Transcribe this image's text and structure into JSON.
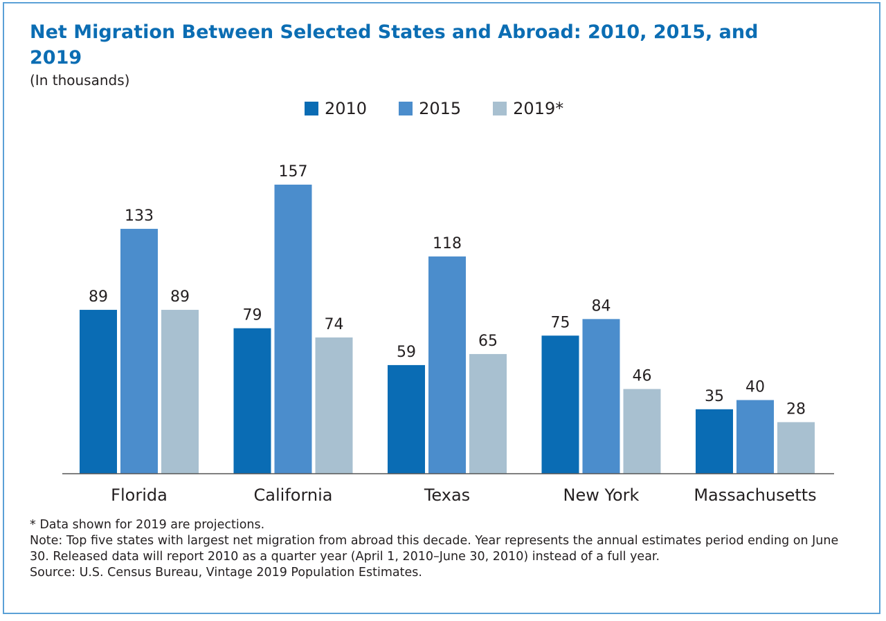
{
  "title": "Net Migration Between Selected States and Abroad: 2010, 2015, and 2019",
  "subtitle": "(In thousands)",
  "colors": {
    "title": "#0b6db3",
    "frame": "#5aa0d6",
    "axis": "#555555",
    "text": "#231f20"
  },
  "chart_data": {
    "type": "bar",
    "title": "Net Migration Between Selected States and Abroad: 2010, 2015, and 2019",
    "subtitle": "(In thousands)",
    "xlabel": "",
    "ylabel": "",
    "categories": [
      "Florida",
      "California",
      "Texas",
      "New York",
      "Massachusetts"
    ],
    "series": [
      {
        "name": "2010",
        "color": "#0a6cb4",
        "values": [
          89,
          79,
          59,
          75,
          35
        ]
      },
      {
        "name": "2015",
        "color": "#4b8dcc",
        "values": [
          133,
          157,
          118,
          84,
          40
        ]
      },
      {
        "name": "2019*",
        "color": "#a8c0d0",
        "values": [
          89,
          74,
          65,
          46,
          28
        ]
      }
    ],
    "ylim": [
      0,
      157
    ],
    "grid": false,
    "legend": "top-center",
    "data_labels": true
  },
  "footnotes": [
    "* Data shown for 2019 are projections.",
    "Note: Top five states with largest net migration from abroad this decade. Year represents the annual estimates period ending on June 30. Released data will report 2010 as a quarter year (April 1, 2010–June 30, 2010) instead of a full year.",
    "Source: U.S. Census Bureau, Vintage 2019 Population Estimates."
  ]
}
